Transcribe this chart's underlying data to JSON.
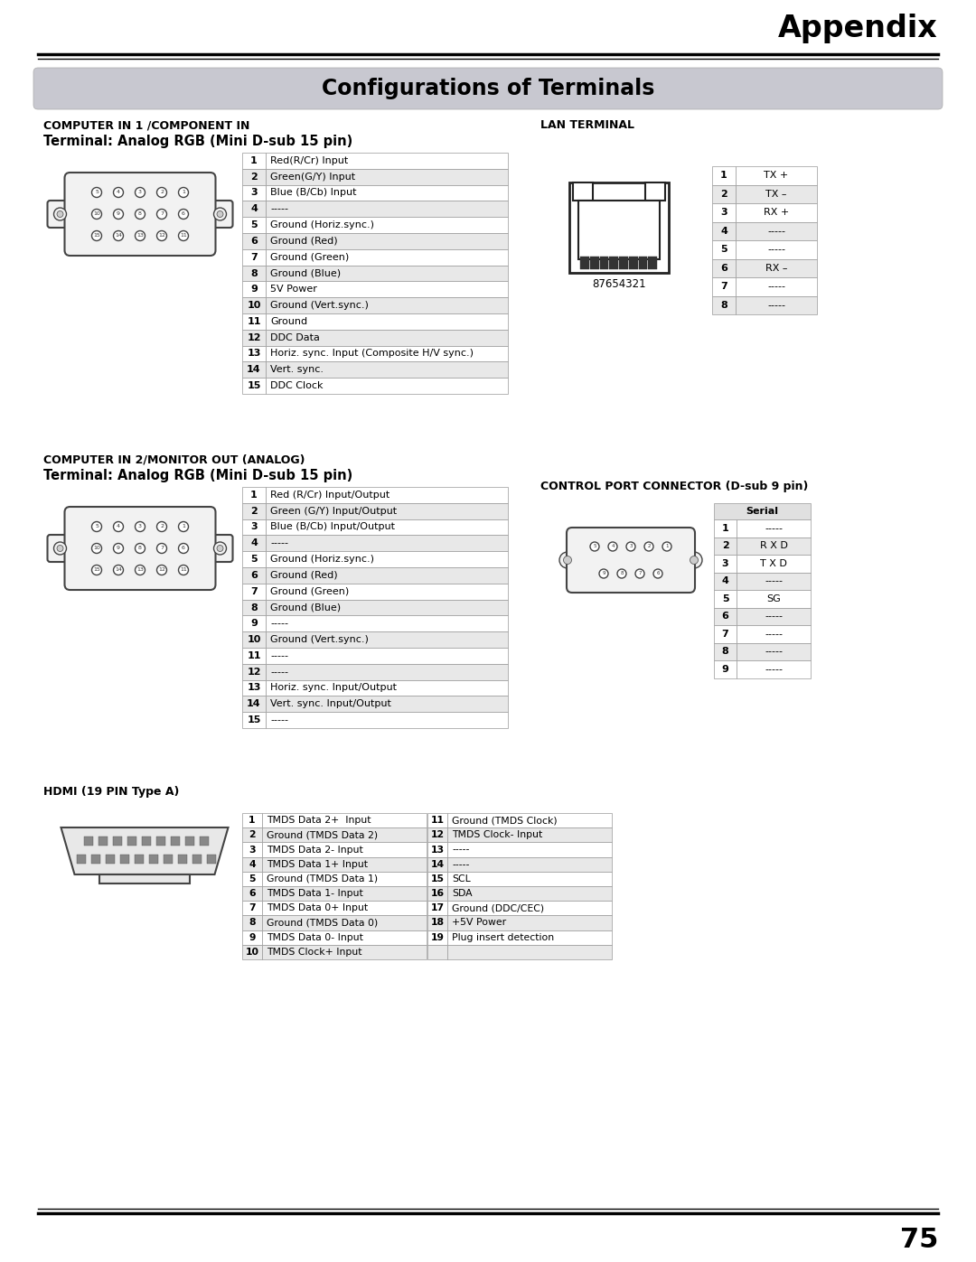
{
  "title": "Appendix",
  "section_title": "Configurations of Terminals",
  "page_number": "75",
  "bg_color": "#ffffff",
  "section_bg": "#c8c8d0",
  "comp1_title": "COMPUTER IN 1 /COMPONENT IN",
  "comp1_subtitle": "Terminal: Analog RGB (Mini D-sub 15 pin)",
  "comp1_pins": [
    [
      1,
      "Red(R/Cr) Input"
    ],
    [
      2,
      "Green(G/Y) Input"
    ],
    [
      3,
      "Blue (B/Cb) Input"
    ],
    [
      4,
      "-----"
    ],
    [
      5,
      "Ground (Horiz.sync.)"
    ],
    [
      6,
      "Ground (Red)"
    ],
    [
      7,
      "Ground (Green)"
    ],
    [
      8,
      "Ground (Blue)"
    ],
    [
      9,
      "5V Power"
    ],
    [
      10,
      "Ground (Vert.sync.)"
    ],
    [
      11,
      "Ground"
    ],
    [
      12,
      "DDC Data"
    ],
    [
      13,
      "Horiz. sync. Input (Composite H/V sync.)"
    ],
    [
      14,
      "Vert. sync."
    ],
    [
      15,
      "DDC Clock"
    ]
  ],
  "lan_title": "LAN TERMINAL",
  "lan_pins": [
    [
      1,
      "TX +"
    ],
    [
      2,
      "TX –"
    ],
    [
      3,
      "RX +"
    ],
    [
      4,
      "-----"
    ],
    [
      5,
      "-----"
    ],
    [
      6,
      "RX –"
    ],
    [
      7,
      "-----"
    ],
    [
      8,
      "-----"
    ]
  ],
  "comp2_title": "COMPUTER IN 2/MONITOR OUT (ANALOG)",
  "comp2_subtitle": "Terminal: Analog RGB (Mini D-sub 15 pin)",
  "comp2_pins": [
    [
      1,
      "Red (R/Cr) Input/Output"
    ],
    [
      2,
      "Green (G/Y) Input/Output"
    ],
    [
      3,
      "Blue (B/Cb) Input/Output"
    ],
    [
      4,
      "-----"
    ],
    [
      5,
      "Ground (Horiz.sync.)"
    ],
    [
      6,
      "Ground (Red)"
    ],
    [
      7,
      "Ground (Green)"
    ],
    [
      8,
      "Ground (Blue)"
    ],
    [
      9,
      "-----"
    ],
    [
      10,
      "Ground (Vert.sync.)"
    ],
    [
      11,
      "-----"
    ],
    [
      12,
      "-----"
    ],
    [
      13,
      "Horiz. sync. Input/Output"
    ],
    [
      14,
      "Vert. sync. Input/Output"
    ],
    [
      15,
      "-----"
    ]
  ],
  "ctrl_title": "CONTROL PORT CONNECTOR (D-sub 9 pin)",
  "ctrl_pins": [
    [
      1,
      "-----"
    ],
    [
      2,
      "R X D"
    ],
    [
      3,
      "T X D"
    ],
    [
      4,
      "-----"
    ],
    [
      5,
      "SG"
    ],
    [
      6,
      "-----"
    ],
    [
      7,
      "-----"
    ],
    [
      8,
      "-----"
    ],
    [
      9,
      "-----"
    ]
  ],
  "ctrl_col_header": "Serial",
  "hdmi_title": "HDMI (19 PIN Type A)",
  "hdmi_pins_left": [
    [
      1,
      "TMDS Data 2+  Input"
    ],
    [
      2,
      "Ground (TMDS Data 2)"
    ],
    [
      3,
      "TMDS Data 2- Input"
    ],
    [
      4,
      "TMDS Data 1+ Input"
    ],
    [
      5,
      "Ground (TMDS Data 1)"
    ],
    [
      6,
      "TMDS Data 1- Input"
    ],
    [
      7,
      "TMDS Data 0+ Input"
    ],
    [
      8,
      "Ground (TMDS Data 0)"
    ],
    [
      9,
      "TMDS Data 0- Input"
    ],
    [
      10,
      "TMDS Clock+ Input"
    ]
  ],
  "hdmi_pins_right": [
    [
      11,
      "Ground (TMDS Clock)"
    ],
    [
      12,
      "TMDS Clock- Input"
    ],
    [
      13,
      "-----"
    ],
    [
      14,
      "-----"
    ],
    [
      15,
      "SCL"
    ],
    [
      16,
      "SDA"
    ],
    [
      17,
      "Ground (DDC/CEC)"
    ],
    [
      18,
      "+5V Power"
    ],
    [
      19,
      "Plug insert detection"
    ],
    [
      "",
      ""
    ]
  ]
}
